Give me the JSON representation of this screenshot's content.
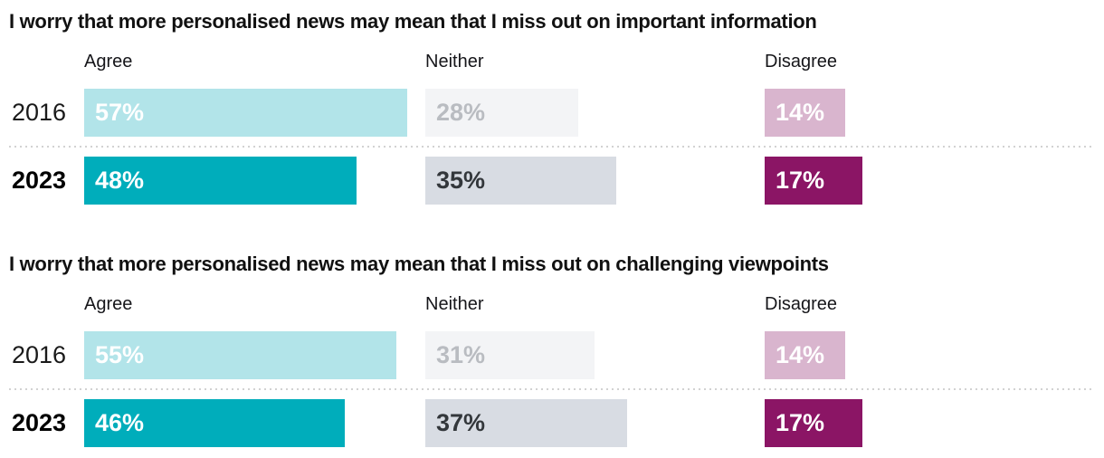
{
  "chart_data": [
    {
      "type": "bar",
      "orientation": "horizontal",
      "title": "I worry that more personalised news may mean that I miss out on important information",
      "categories": [
        "Agree",
        "Neither",
        "Disagree"
      ],
      "series": [
        {
          "name": "2016",
          "values": [
            57,
            28,
            14
          ],
          "labels": [
            "57%",
            "28%",
            "14%"
          ]
        },
        {
          "name": "2023",
          "values": [
            48,
            35,
            17
          ],
          "labels": [
            "48%",
            "35%",
            "17%"
          ]
        }
      ],
      "unit": "%",
      "xlim": [
        0,
        60
      ],
      "grid": false,
      "legend": "none",
      "row_separator": "dotted"
    },
    {
      "type": "bar",
      "orientation": "horizontal",
      "title": "I worry that more personalised news may mean that I miss out on challenging viewpoints",
      "categories": [
        "Agree",
        "Neither",
        "Disagree"
      ],
      "series": [
        {
          "name": "2016",
          "values": [
            55,
            31,
            14
          ],
          "labels": [
            "55%",
            "31%",
            "14%"
          ]
        },
        {
          "name": "2023",
          "values": [
            46,
            37,
            17
          ],
          "labels": [
            "46%",
            "37%",
            "17%"
          ]
        }
      ],
      "unit": "%",
      "xlim": [
        0,
        60
      ],
      "grid": false,
      "legend": "none",
      "row_separator": "dotted"
    }
  ],
  "colors": {
    "bars": {
      "agree_2016": "#b2e4e9",
      "agree_2023": "#00adbb",
      "neither_2016": "#f3f4f6",
      "neither_2023": "#d8dce3",
      "disagree_2016": "#d9b5ce",
      "disagree_2023": "#8b1565"
    },
    "value_text": {
      "agree_2016": "#ffffff",
      "agree_2023": "#ffffff",
      "neither_2016": "#b9bcc1",
      "neither_2023": "#33373b",
      "disagree_2016": "#ffffff",
      "disagree_2023": "#ffffff"
    },
    "title_text": "#111111",
    "header_text": "#16161a",
    "year_2016_text": "#1a1a1a",
    "year_2023_text": "#000000",
    "separator": "#d2d2d2",
    "background": "#ffffff"
  }
}
